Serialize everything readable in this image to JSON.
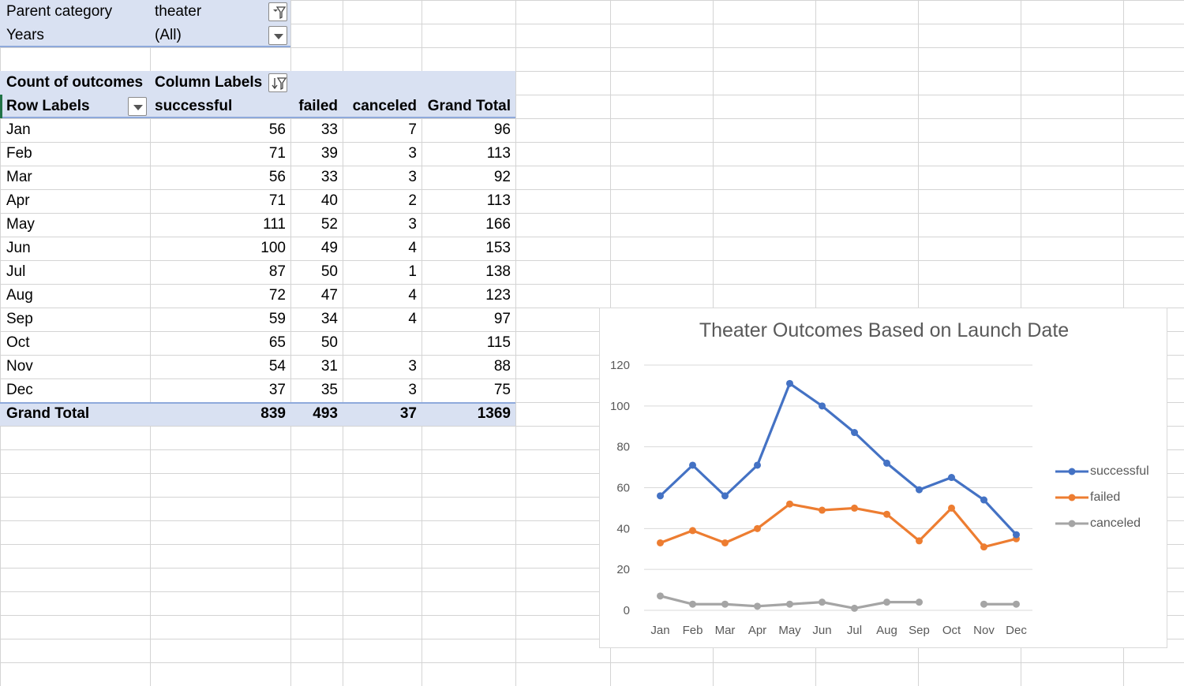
{
  "filters": {
    "parent_category": {
      "label": "Parent category",
      "value": "theater"
    },
    "years": {
      "label": "Years",
      "value": "(All)"
    }
  },
  "pivot": {
    "value_label": "Count of outcomes",
    "column_labels": "Column Labels",
    "row_labels": "Row Labels",
    "columns": [
      "successful",
      "failed",
      "canceled",
      "Grand Total"
    ],
    "rows": [
      {
        "label": "Jan",
        "values": [
          "56",
          "33",
          "7",
          "96"
        ]
      },
      {
        "label": "Feb",
        "values": [
          "71",
          "39",
          "3",
          "113"
        ]
      },
      {
        "label": "Mar",
        "values": [
          "56",
          "33",
          "3",
          "92"
        ]
      },
      {
        "label": "Apr",
        "values": [
          "71",
          "40",
          "2",
          "113"
        ]
      },
      {
        "label": "May",
        "values": [
          "111",
          "52",
          "3",
          "166"
        ]
      },
      {
        "label": "Jun",
        "values": [
          "100",
          "49",
          "4",
          "153"
        ]
      },
      {
        "label": "Jul",
        "values": [
          "87",
          "50",
          "1",
          "138"
        ]
      },
      {
        "label": "Aug",
        "values": [
          "72",
          "47",
          "4",
          "123"
        ]
      },
      {
        "label": "Sep",
        "values": [
          "59",
          "34",
          "4",
          "97"
        ]
      },
      {
        "label": "Oct",
        "values": [
          "65",
          "50",
          "",
          "115"
        ]
      },
      {
        "label": "Nov",
        "values": [
          "54",
          "31",
          "3",
          "88"
        ]
      },
      {
        "label": "Dec",
        "values": [
          "37",
          "35",
          "3",
          "75"
        ]
      }
    ],
    "grand_total": {
      "label": "Grand Total",
      "values": [
        "839",
        "493",
        "37",
        "1369"
      ]
    }
  },
  "colors": {
    "header_fill": "#d9e1f2",
    "header_border": "#8ea9db",
    "grid_line": "#d4d4d4",
    "selection_marker": "#217346"
  },
  "chart_data": {
    "type": "line",
    "title": "Theater Outcomes Based on Launch Date",
    "categories": [
      "Jan",
      "Feb",
      "Mar",
      "Apr",
      "May",
      "Jun",
      "Jul",
      "Aug",
      "Sep",
      "Oct",
      "Nov",
      "Dec"
    ],
    "series": [
      {
        "name": "successful",
        "color": "#4472c4",
        "values": [
          56,
          71,
          56,
          71,
          111,
          100,
          87,
          72,
          59,
          65,
          54,
          37
        ]
      },
      {
        "name": "failed",
        "color": "#ed7d31",
        "values": [
          33,
          39,
          33,
          40,
          52,
          49,
          50,
          47,
          34,
          50,
          31,
          35
        ]
      },
      {
        "name": "canceled",
        "color": "#a5a5a5",
        "values": [
          7,
          3,
          3,
          2,
          3,
          4,
          1,
          4,
          4,
          null,
          3,
          3
        ]
      }
    ],
    "yticks": [
      0,
      20,
      40,
      60,
      80,
      100,
      120
    ],
    "ylim": [
      0,
      120
    ],
    "grid": true,
    "legend": "right",
    "xlabel": "",
    "ylabel": ""
  }
}
